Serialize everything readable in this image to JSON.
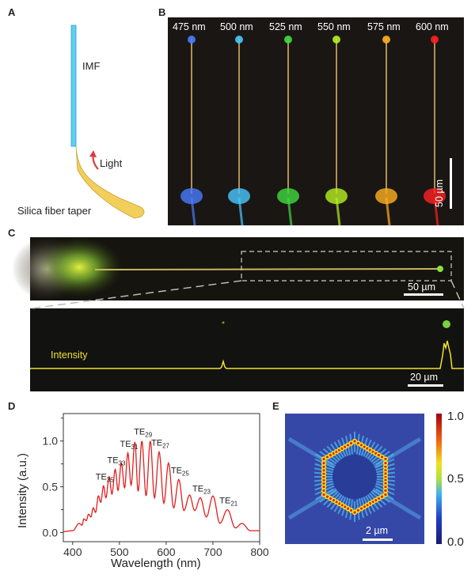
{
  "panels": {
    "a": {
      "label": "A",
      "fiber_label": "IMF",
      "light_label": "Light",
      "taper_label": "Silica fiber taper"
    },
    "b": {
      "label": "B",
      "wavelengths": [
        {
          "text": "475 nm",
          "color": "#4a7cff"
        },
        {
          "text": "500 nm",
          "color": "#49c8ff"
        },
        {
          "text": "525 nm",
          "color": "#3fdc3f"
        },
        {
          "text": "550 nm",
          "color": "#b6f020"
        },
        {
          "text": "575 nm",
          "color": "#ffb020"
        },
        {
          "text": "600 nm",
          "color": "#ff2020"
        }
      ],
      "scale": "50 µm"
    },
    "c": {
      "label": "C",
      "scale_top": "50 µm",
      "intensity_label": "Intensity",
      "scale_bottom": "20 µm"
    },
    "e": {
      "label": "E",
      "scale": "2 µm",
      "colorbar_ticks": [
        "1.0",
        "0.5",
        "0.0"
      ]
    }
  },
  "chart_data": {
    "label": "D",
    "type": "line",
    "xlabel": "Wavelength (nm)",
    "ylabel": "Intensity (a.u.)",
    "xlim": [
      380,
      800
    ],
    "ylim": [
      -0.1,
      1.3
    ],
    "xticks": [
      400,
      500,
      600,
      700,
      800
    ],
    "yticks": [
      0.0,
      0.5,
      1.0
    ],
    "ytick_labels": [
      "0.0",
      "0.5",
      "1.0"
    ],
    "color": "#e02020",
    "points": [
      [
        380,
        0.01
      ],
      [
        400,
        0.02
      ],
      [
        414,
        0.1
      ],
      [
        420,
        0.08
      ],
      [
        424,
        0.15
      ],
      [
        429,
        0.13
      ],
      [
        434,
        0.2
      ],
      [
        439,
        0.17
      ],
      [
        444,
        0.27
      ],
      [
        449,
        0.22
      ],
      [
        455,
        0.4
      ],
      [
        460,
        0.33
      ],
      [
        466,
        0.51
      ],
      [
        471,
        0.38
      ],
      [
        478,
        0.61
      ],
      [
        484,
        0.42
      ],
      [
        491,
        0.69
      ],
      [
        497,
        0.46
      ],
      [
        504,
        0.76
      ],
      [
        511,
        0.49
      ],
      [
        518,
        0.87
      ],
      [
        525,
        0.52
      ],
      [
        533,
        0.99
      ],
      [
        540,
        0.45
      ],
      [
        548,
        1.0
      ],
      [
        557,
        0.4
      ],
      [
        566,
        1.0
      ],
      [
        575,
        0.38
      ],
      [
        585,
        0.88
      ],
      [
        595,
        0.32
      ],
      [
        605,
        0.76
      ],
      [
        616,
        0.27
      ],
      [
        627,
        0.58
      ],
      [
        638,
        0.24
      ],
      [
        650,
        0.41
      ],
      [
        661,
        0.24
      ],
      [
        673,
        0.38
      ],
      [
        686,
        0.17
      ],
      [
        700,
        0.4
      ],
      [
        715,
        0.1
      ],
      [
        731,
        0.25
      ],
      [
        748,
        0.05
      ],
      [
        762,
        0.1
      ],
      [
        780,
        0.02
      ],
      [
        800,
        0.02
      ]
    ],
    "annotations": [
      {
        "base": "TE",
        "sub": "35",
        "x": 466,
        "y": 0.51
      },
      {
        "base": "TE",
        "sub": "33",
        "x": 491,
        "y": 0.69
      },
      {
        "base": "TE",
        "sub": "31",
        "x": 518,
        "y": 0.87
      },
      {
        "base": "TE",
        "sub": "29",
        "x": 548,
        "y": 1.0
      },
      {
        "base": "TE",
        "sub": "27",
        "x": 585,
        "y": 0.88
      },
      {
        "base": "TE",
        "sub": "25",
        "x": 627,
        "y": 0.58
      },
      {
        "base": "TE",
        "sub": "23",
        "x": 673,
        "y": 0.38
      },
      {
        "base": "TE",
        "sub": "21",
        "x": 731,
        "y": 0.25
      }
    ]
  }
}
